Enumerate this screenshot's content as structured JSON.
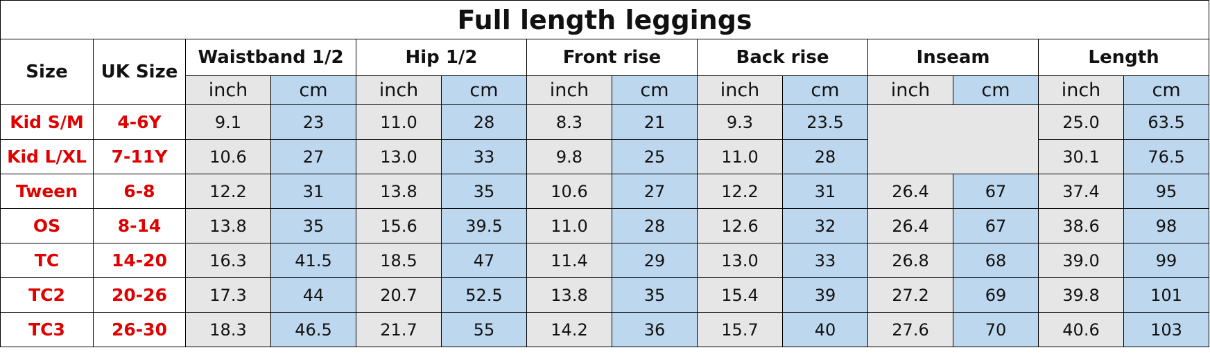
{
  "title": "Full length leggings",
  "header": {
    "size": "Size",
    "uk_size": "UK Size",
    "groups": [
      {
        "name": "Waistband 1/2",
        "units": [
          "inch",
          "cm"
        ]
      },
      {
        "name": "Hip 1/2",
        "units": [
          "inch",
          "cm"
        ]
      },
      {
        "name": "Front rise",
        "units": [
          "inch",
          "cm"
        ]
      },
      {
        "name": "Back rise",
        "units": [
          "inch",
          "cm"
        ]
      },
      {
        "name": "Inseam",
        "units": [
          "inch",
          "cm"
        ]
      },
      {
        "name": "Length",
        "units": [
          "inch",
          "cm"
        ]
      }
    ]
  },
  "rows": [
    {
      "size": "Kid S/M",
      "uk_size": "4-6Y",
      "values": [
        "9.1",
        "23",
        "11.0",
        "28",
        "8.3",
        "21",
        "9.3",
        "23.5",
        null,
        null,
        "25.0",
        "63.5"
      ]
    },
    {
      "size": "Kid L/XL",
      "uk_size": "7-11Y",
      "values": [
        "10.6",
        "27",
        "13.0",
        "33",
        "9.8",
        "25",
        "11.0",
        "28",
        null,
        null,
        "30.1",
        "76.5"
      ]
    },
    {
      "size": "Tween",
      "uk_size": "6-8",
      "values": [
        "12.2",
        "31",
        "13.8",
        "35",
        "10.6",
        "27",
        "12.2",
        "31",
        "26.4",
        "67",
        "37.4",
        "95"
      ]
    },
    {
      "size": "OS",
      "uk_size": "8-14",
      "values": [
        "13.8",
        "35",
        "15.6",
        "39.5",
        "11.0",
        "28",
        "12.6",
        "32",
        "26.4",
        "67",
        "38.6",
        "98"
      ]
    },
    {
      "size": "TC",
      "uk_size": "14-20",
      "values": [
        "16.3",
        "41.5",
        "18.5",
        "47",
        "11.4",
        "29",
        "13.0",
        "33",
        "26.8",
        "68",
        "39.0",
        "99"
      ]
    },
    {
      "size": "TC2",
      "uk_size": "20-26",
      "values": [
        "17.3",
        "44",
        "20.7",
        "52.5",
        "13.8",
        "35",
        "15.4",
        "39",
        "27.2",
        "69",
        "39.8",
        "101"
      ]
    },
    {
      "size": "TC3",
      "uk_size": "26-30",
      "values": [
        "18.3",
        "46.5",
        "21.7",
        "55",
        "14.2",
        "36",
        "15.7",
        "40",
        "27.6",
        "70",
        "40.6",
        "103"
      ]
    }
  ]
}
